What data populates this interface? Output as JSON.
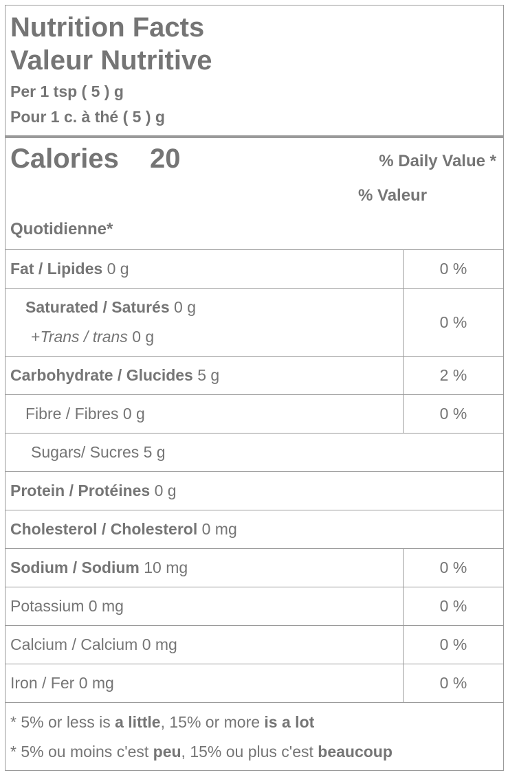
{
  "header": {
    "title": [
      "Nutrition Facts",
      "Valeur Nutritive"
    ],
    "serving": [
      "Per 1 tsp ( 5 ) g",
      "Pour 1 c. à thé ( 5 ) g"
    ]
  },
  "calories": {
    "label": "Calories",
    "value": "20"
  },
  "daily_value": [
    "% Daily Value *",
    "% Valeur",
    "Quotidienne*"
  ],
  "rows": [
    {
      "lines": [
        [
          {
            "text": "Fat / Lipides",
            "style": "bold"
          },
          {
            "text": " 0 g"
          }
        ]
      ],
      "percent": "0 %"
    },
    {
      "lines": [
        [
          {
            "text": "Saturated / Saturés",
            "style": "bold"
          },
          {
            "text": " 0 g"
          }
        ],
        [
          {
            "text": "+"
          },
          {
            "text": "Trans / trans",
            "style": "italic"
          },
          {
            "text": " 0 g"
          }
        ]
      ],
      "percent": "0 %"
    },
    {
      "lines": [
        [
          {
            "text": "Carbohydrate / Glucides",
            "style": "bold"
          },
          {
            "text": " 5 g"
          }
        ]
      ],
      "percent": "2 %"
    },
    {
      "lines": [
        [
          {
            "text": "Fibre / Fibres 0 g"
          }
        ]
      ],
      "percent": "0 %"
    },
    {
      "lines": [
        [
          {
            "text": "Sugars/ Sucres 5 g"
          }
        ]
      ]
    },
    {
      "lines": [
        [
          {
            "text": "Protein / Protéines",
            "style": "bold"
          },
          {
            "text": " 0 g"
          }
        ]
      ]
    },
    {
      "lines": [
        [
          {
            "text": "Cholesterol / Cholesterol",
            "style": "bold"
          },
          {
            "text": " 0 mg"
          }
        ]
      ]
    },
    {
      "lines": [
        [
          {
            "text": "Sodium / Sodium",
            "style": "bold"
          },
          {
            "text": " 10 mg"
          }
        ]
      ],
      "percent": "0 %"
    },
    {
      "lines": [
        [
          {
            "text": "Potassium 0 mg"
          }
        ]
      ],
      "percent": "0 %"
    },
    {
      "lines": [
        [
          {
            "text": "Calcium / Calcium 0 mg"
          }
        ]
      ],
      "percent": "0 %"
    },
    {
      "lines": [
        [
          {
            "text": "Iron / Fer 0 mg"
          }
        ]
      ],
      "percent": "0 %"
    }
  ],
  "footnotes": [
    [
      {
        "text": "* 5% or less is "
      },
      {
        "text": "a little",
        "style": "bold"
      },
      {
        "text": ", 15% or more "
      },
      {
        "text": "is a lot",
        "style": "bold"
      }
    ],
    [
      {
        "text": "* 5% ou moins c'est "
      },
      {
        "text": "peu",
        "style": "bold"
      },
      {
        "text": ", 15% ou plus c'est "
      },
      {
        "text": "beaucoup",
        "style": "bold"
      }
    ]
  ]
}
